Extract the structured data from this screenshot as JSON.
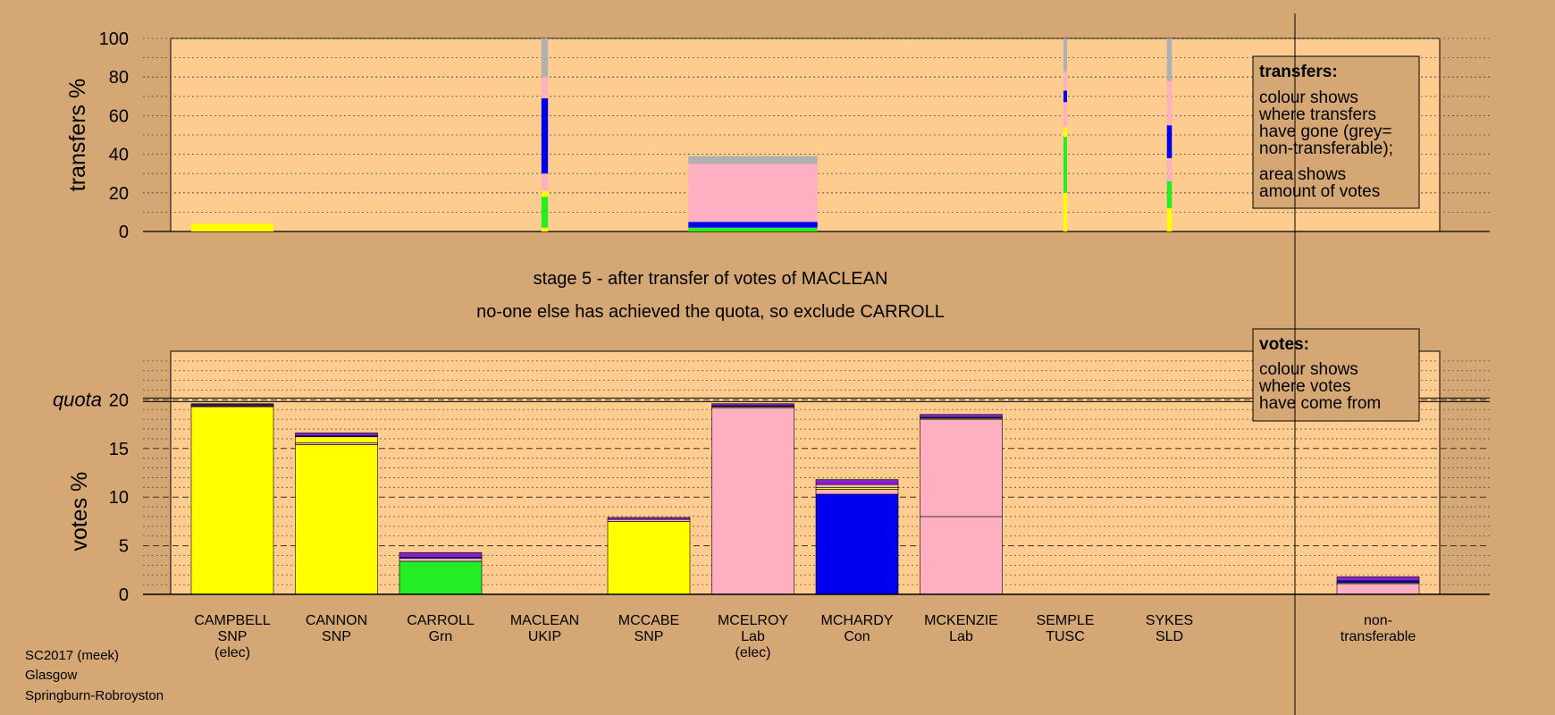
{
  "colors": {
    "background": "#d4a775",
    "plot_area": "#ffcc90",
    "SNP": "#ffff00",
    "Grn": "#22ee22",
    "Lab": "#ffb0c0",
    "Con": "#0000ee",
    "UKIP": "#8822cc",
    "SLD": "#ff9900",
    "TUSC": "#cc2222",
    "nontransferable": "#b0b0b0"
  },
  "stage": {
    "line1": "stage 5 - after transfer of votes of MACLEAN",
    "line2": "no-one else has achieved the quota, so exclude CARROLL"
  },
  "footer": {
    "line1": "SC2017 (meek)",
    "line2": "Glasgow",
    "line3": "Springburn-Robroyston"
  },
  "legend_transfers": {
    "title": "transfers:",
    "lines": [
      "colour shows",
      "where transfers",
      "have gone (grey=",
      "non-transferable);"
    ],
    "lines2": [
      "area shows",
      "amount of votes"
    ]
  },
  "legend_votes": {
    "title": "votes:",
    "lines": [
      "colour shows",
      "where votes",
      "have come from"
    ]
  },
  "chart_data": [
    {
      "type": "bar",
      "title": "",
      "ylabel": "transfers %",
      "ylim": [
        0,
        100
      ],
      "yticks": [
        0,
        20,
        40,
        60,
        80,
        100
      ],
      "columns": [
        {
          "name": "CAMPBELL",
          "width_fraction": 1.0,
          "segments": [
            {
              "party": "SNP",
              "from": 0,
              "to": 4
            }
          ]
        },
        {
          "name": "CANNON",
          "width_fraction": 0,
          "segments": []
        },
        {
          "name": "CARROLL",
          "width_fraction": 0,
          "segments": []
        },
        {
          "name": "MACLEAN",
          "width_fraction": 0.08,
          "segments": [
            {
              "party": "SNP",
              "from": 0,
              "to": 2
            },
            {
              "party": "Grn",
              "from": 2,
              "to": 18
            },
            {
              "party": "SNP",
              "from": 18,
              "to": 21
            },
            {
              "party": "Lab",
              "from": 21,
              "to": 30
            },
            {
              "party": "Con",
              "from": 30,
              "to": 69
            },
            {
              "party": "Lab",
              "from": 69,
              "to": 80
            },
            {
              "party": "nontransferable",
              "from": 80,
              "to": 100
            }
          ]
        },
        {
          "name": "MCCABE",
          "width_fraction": 0,
          "segments": []
        },
        {
          "name": "MCELROY",
          "width_fraction": 1.57,
          "segments": [
            {
              "party": "Grn",
              "from": 0,
              "to": 2
            },
            {
              "party": "Con",
              "from": 2,
              "to": 5
            },
            {
              "party": "Lab",
              "from": 5,
              "to": 35
            },
            {
              "party": "nontransferable",
              "from": 35,
              "to": 39
            }
          ]
        },
        {
          "name": "MCHARDY",
          "width_fraction": 0,
          "segments": []
        },
        {
          "name": "MCKENZIE",
          "width_fraction": 0,
          "segments": []
        },
        {
          "name": "SEMPLE",
          "width_fraction": 0.03,
          "segments": [
            {
              "party": "SNP",
              "from": 0,
              "to": 20
            },
            {
              "party": "Grn",
              "from": 20,
              "to": 49
            },
            {
              "party": "SNP",
              "from": 49,
              "to": 54
            },
            {
              "party": "Lab",
              "from": 54,
              "to": 67
            },
            {
              "party": "Con",
              "from": 67,
              "to": 73
            },
            {
              "party": "Lab",
              "from": 73,
              "to": 83
            },
            {
              "party": "nontransferable",
              "from": 83,
              "to": 100
            }
          ]
        },
        {
          "name": "SYKES",
          "width_fraction": 0.06,
          "segments": [
            {
              "party": "SNP",
              "from": 0,
              "to": 12
            },
            {
              "party": "Grn",
              "from": 12,
              "to": 26
            },
            {
              "party": "Lab",
              "from": 26,
              "to": 38
            },
            {
              "party": "Con",
              "from": 38,
              "to": 55
            },
            {
              "party": "Lab",
              "from": 55,
              "to": 78
            },
            {
              "party": "nontransferable",
              "from": 78,
              "to": 100
            }
          ]
        }
      ]
    },
    {
      "type": "bar",
      "title": "",
      "ylabel": "votes %",
      "ylim": [
        0,
        20
      ],
      "yticks": [
        0,
        5,
        10,
        15,
        20
      ],
      "quota_label": "quota",
      "quota": 20,
      "categories": [
        {
          "name": "CAMPBELL",
          "party": "SNP",
          "note": "(elec)"
        },
        {
          "name": "CANNON",
          "party": "SNP",
          "note": ""
        },
        {
          "name": "CARROLL",
          "party": "Grn",
          "note": ""
        },
        {
          "name": "MACLEAN",
          "party": "UKIP",
          "note": ""
        },
        {
          "name": "MCCABE",
          "party": "SNP",
          "note": ""
        },
        {
          "name": "MCELROY",
          "party": "Lab",
          "note": "(elec)"
        },
        {
          "name": "MCHARDY",
          "party": "Con",
          "note": ""
        },
        {
          "name": "MCKENZIE",
          "party": "Lab",
          "note": ""
        },
        {
          "name": "SEMPLE",
          "party": "TUSC",
          "note": ""
        },
        {
          "name": "SYKES",
          "party": "SLD",
          "note": ""
        }
      ],
      "stacks": [
        [
          {
            "party": "SNP",
            "value": 19.3
          },
          {
            "party": "Grn",
            "value": 0.05
          },
          {
            "party": "Lab",
            "value": 0.1
          },
          {
            "party": "Con",
            "value": 0.05
          },
          {
            "party": "UKIP",
            "value": 0.1
          }
        ],
        [
          {
            "party": "SNP",
            "value": 15.4
          },
          {
            "party": "Lab",
            "value": 0.2
          },
          {
            "party": "SNP",
            "value": 0.6
          },
          {
            "party": "Con",
            "value": 0.1
          },
          {
            "party": "UKIP",
            "value": 0.3
          }
        ],
        [
          {
            "party": "Grn",
            "value": 3.4
          },
          {
            "party": "Lab",
            "value": 0.3
          },
          {
            "party": "Con",
            "value": 0.1
          },
          {
            "party": "UKIP",
            "value": 0.5
          }
        ],
        [],
        [
          {
            "party": "SNP",
            "value": 7.5
          },
          {
            "party": "Lab",
            "value": 0.2
          },
          {
            "party": "UKIP",
            "value": 0.2
          }
        ],
        [
          {
            "party": "Lab",
            "value": 19.2
          },
          {
            "party": "SNP",
            "value": 0.1
          },
          {
            "party": "Con",
            "value": 0.1
          },
          {
            "party": "UKIP",
            "value": 0.2
          }
        ],
        [
          {
            "party": "Con",
            "value": 10.3
          },
          {
            "party": "Lab",
            "value": 0.5
          },
          {
            "party": "SNP",
            "value": 0.2
          },
          {
            "party": "Lab",
            "value": 0.3
          },
          {
            "party": "UKIP",
            "value": 0.5
          }
        ],
        [
          {
            "party": "Lab",
            "value": 8.0
          },
          {
            "party": "Lab",
            "value": 10.0
          },
          {
            "party": "SNP",
            "value": 0.1
          },
          {
            "party": "Con",
            "value": 0.1
          },
          {
            "party": "UKIP",
            "value": 0.3
          }
        ],
        [],
        []
      ],
      "nontransferable": {
        "label_line1": "non-",
        "label_line2": "transferable",
        "stack": [
          {
            "party": "Lab",
            "value": 1.1
          },
          {
            "party": "SNP",
            "value": 0.1
          },
          {
            "party": "Con",
            "value": 0.2
          },
          {
            "party": "UKIP",
            "value": 0.4
          }
        ]
      }
    }
  ]
}
